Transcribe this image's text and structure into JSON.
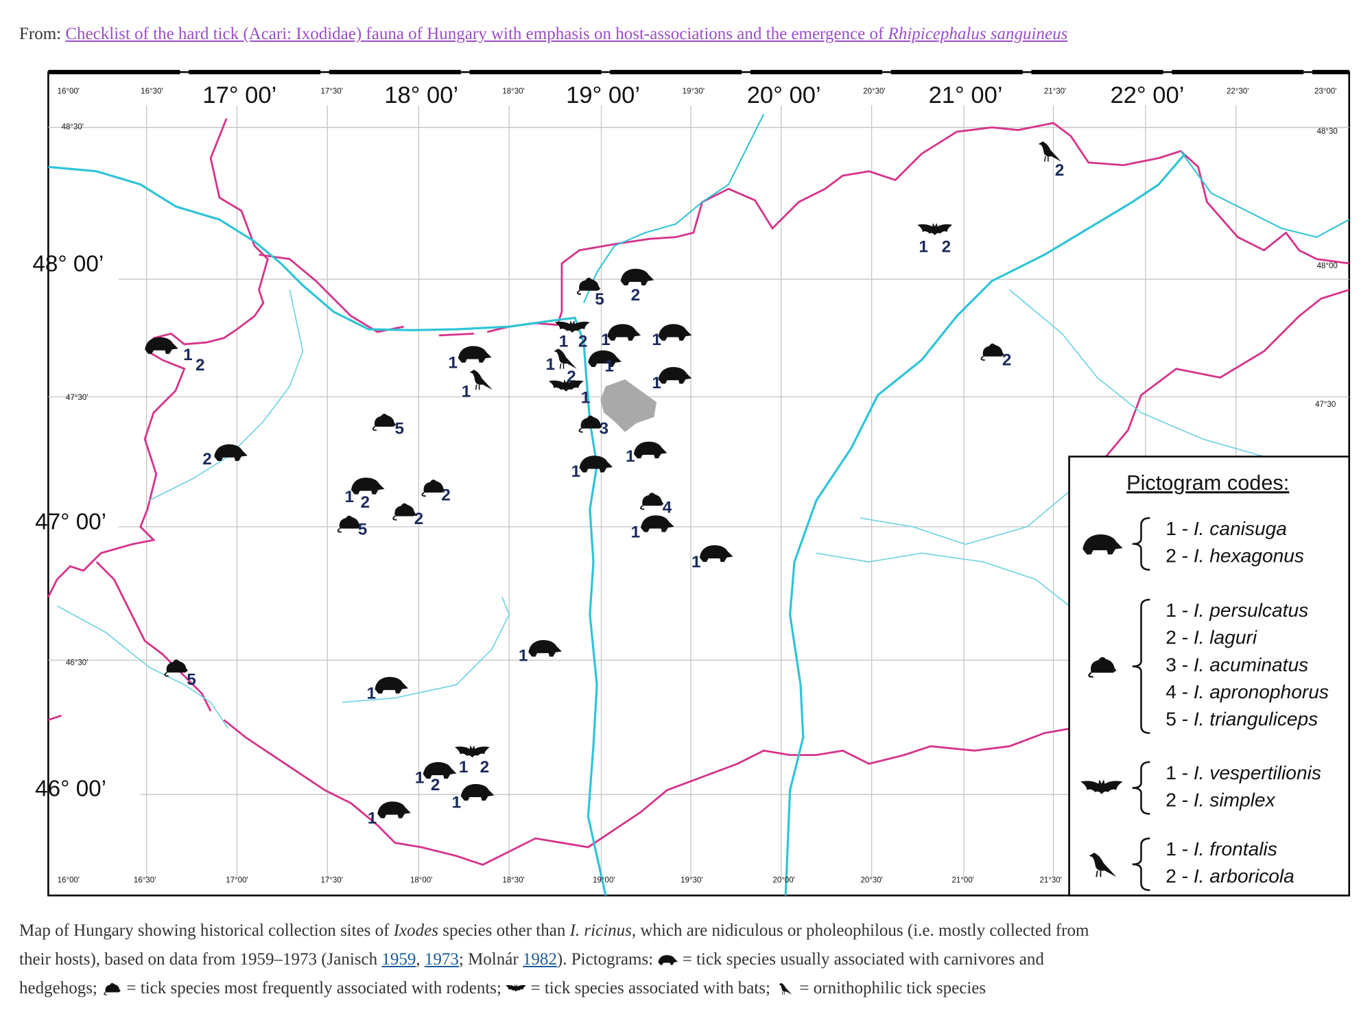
{
  "header": {
    "prefix": "From:",
    "link_title": "Checklist of the hard tick (Acari: Ixodidae) fauna of Hungary with emphasis on host-associations and the emergence of",
    "link_italic": "Rhipicephalus sanguineus"
  },
  "map": {
    "top_minor": [
      "16°00'",
      "16°30'",
      "17°30'",
      "18°30'",
      "19°30'",
      "20°30'",
      "21°30'",
      "22°30'",
      "23°00'"
    ],
    "top_major": [
      "17° 00’",
      "18° 00’",
      "19° 00’",
      "20° 00’",
      "21° 00’",
      "22° 00’"
    ],
    "bottom": [
      "16°00'",
      "16°30'",
      "17°00'",
      "17°30'",
      "18°00'",
      "18°30'",
      "19°00'",
      "19°30'",
      "20°00'",
      "20°30'",
      "21°00'",
      "21°30'"
    ],
    "left_major": [
      "48° 00’",
      "47° 00’",
      "46° 00’"
    ],
    "left_minor": [
      "48°30'",
      "47°30'",
      "46°30'"
    ],
    "right_minor": [
      "48°30",
      "48°00",
      "47°30"
    ],
    "sites": [
      {
        "icon": "bird",
        "labels": [
          "2"
        ]
      },
      {
        "icon": "bat",
        "labels": [
          "1",
          "2"
        ]
      },
      {
        "icon": "rodent",
        "labels": [
          "2"
        ]
      },
      {
        "icon": "rodent",
        "labels": [
          "5"
        ]
      },
      {
        "icon": "carnivore",
        "labels": [
          "2"
        ]
      },
      {
        "icon": "bat",
        "labels": [
          "1",
          "2"
        ]
      },
      {
        "icon": "carnivore",
        "labels": [
          "1"
        ]
      },
      {
        "icon": "carnivore",
        "labels": [
          "1"
        ]
      },
      {
        "icon": "carnivore",
        "labels": [
          "1"
        ]
      },
      {
        "icon": "bird",
        "labels": [
          "1"
        ]
      },
      {
        "icon": "bird",
        "labels": [
          "1",
          "2"
        ]
      },
      {
        "icon": "carnivore",
        "labels": [
          "1"
        ]
      },
      {
        "icon": "carnivore",
        "labels": [
          "1"
        ]
      },
      {
        "icon": "bat",
        "labels": [
          "1"
        ]
      },
      {
        "icon": "rodent",
        "labels": [
          "3"
        ]
      },
      {
        "icon": "carnivore",
        "labels": [
          "1"
        ]
      },
      {
        "icon": "carnivore",
        "labels": [
          "1"
        ]
      },
      {
        "icon": "carnivore",
        "labels": [
          "1",
          "2"
        ]
      },
      {
        "icon": "rodent",
        "labels": [
          "5"
        ]
      },
      {
        "icon": "carnivore",
        "labels": [
          "2"
        ]
      },
      {
        "icon": "carnivore",
        "labels": [
          "1",
          "2"
        ]
      },
      {
        "icon": "rodent",
        "labels": [
          "2"
        ]
      },
      {
        "icon": "rodent",
        "labels": [
          "2"
        ]
      },
      {
        "icon": "rodent",
        "labels": [
          "5"
        ]
      },
      {
        "icon": "rodent",
        "labels": [
          "4"
        ]
      },
      {
        "icon": "carnivore",
        "labels": [
          "1"
        ]
      },
      {
        "icon": "carnivore",
        "labels": [
          "1"
        ]
      },
      {
        "icon": "carnivore",
        "labels": [
          "1"
        ]
      },
      {
        "icon": "rodent",
        "labels": [
          "5"
        ]
      },
      {
        "icon": "carnivore",
        "labels": [
          "1"
        ]
      },
      {
        "icon": "bat",
        "labels": [
          "1",
          "2"
        ]
      },
      {
        "icon": "carnivore",
        "labels": [
          "1",
          "2"
        ]
      },
      {
        "icon": "carnivore",
        "labels": [
          "1"
        ]
      },
      {
        "icon": "carnivore",
        "labels": [
          "1"
        ]
      }
    ]
  },
  "legend": {
    "title": "Pictogram codes:",
    "groups": [
      {
        "icon": "carnivore",
        "items": [
          {
            "num": "1 -",
            "name": "I. canisuga"
          },
          {
            "num": "2 -",
            "name": "I. hexagonus"
          }
        ]
      },
      {
        "icon": "rodent",
        "items": [
          {
            "num": "1 -",
            "name": "I. persulcatus"
          },
          {
            "num": "2 -",
            "name": "I. laguri"
          },
          {
            "num": "3 -",
            "name": "I. acuminatus"
          },
          {
            "num": "4 -",
            "name": "I. apronophorus"
          },
          {
            "num": "5 -",
            "name": "I. trianguliceps"
          }
        ]
      },
      {
        "icon": "bat",
        "items": [
          {
            "num": "1 -",
            "name": "I. vespertilionis"
          },
          {
            "num": "2 -",
            "name": "I. simplex"
          }
        ]
      },
      {
        "icon": "bird",
        "items": [
          {
            "num": "1 -",
            "name": "I. frontalis"
          },
          {
            "num": "2 -",
            "name": "I. arboricola"
          }
        ]
      }
    ]
  },
  "caption": [
    "Map of Hungary showing historical collection sites of",
    "Ixodes",
    "species other than",
    "I. ricinus",
    ", which are nidiculous or pholeophilous (i.e. mostly collected from",
    "their hosts), based on data from 1959–1973 (Janisch",
    "1959",
    ",",
    "1973",
    "; Molnár",
    "1982",
    "). Pictograms:",
    "= tick species usually associated with carnivores and",
    "hedgehogs;",
    "= tick species most frequently associated with rodents;",
    "= tick species associated with bats;",
    "= ornithophilic tick species"
  ]
}
